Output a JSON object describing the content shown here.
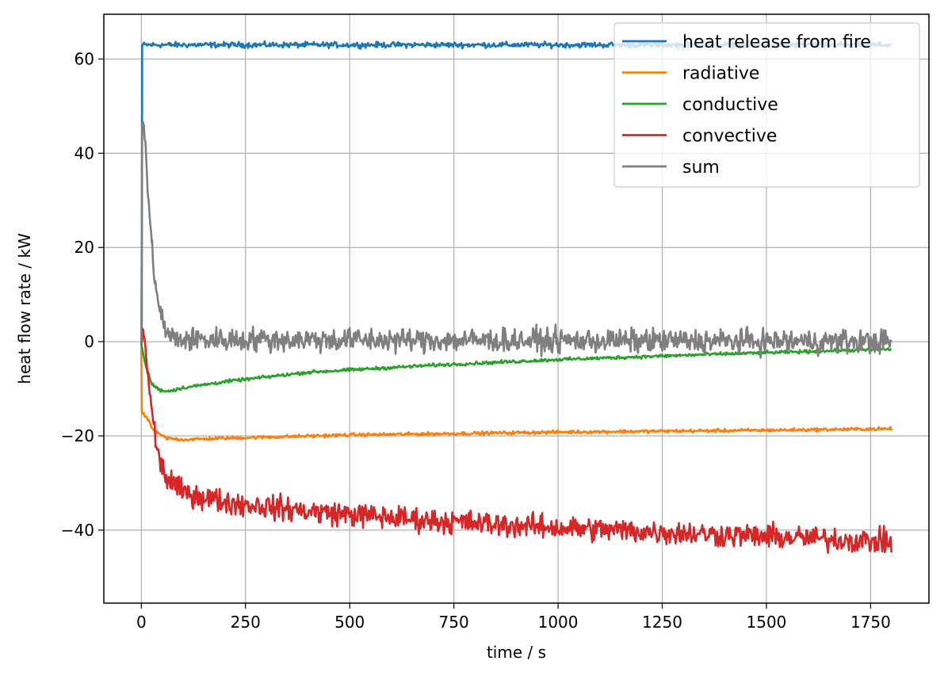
{
  "chart_data": {
    "type": "line",
    "xlabel": "time / s",
    "ylabel": "heat flow rate / kW",
    "xlim": [
      -90,
      1890
    ],
    "ylim": [
      -55.5,
      69.5
    ],
    "xticks": [
      0,
      250,
      500,
      750,
      1000,
      1250,
      1500,
      1750
    ],
    "yticks": [
      -40,
      -20,
      0,
      20,
      40,
      60
    ],
    "grid": true,
    "legend_position": "top-right",
    "series": [
      {
        "name": "heat release from fire",
        "color": "#1f77b4",
        "noise": 0.5,
        "points": [
          [
            0,
            0
          ],
          [
            1,
            0
          ],
          [
            2,
            63
          ],
          [
            1800,
            63
          ]
        ]
      },
      {
        "name": "radiative",
        "color": "#ff7f0e",
        "noise": 0.3,
        "points": [
          [
            0,
            0
          ],
          [
            1,
            -15
          ],
          [
            15,
            -16.5
          ],
          [
            30,
            -19
          ],
          [
            60,
            -20.5
          ],
          [
            100,
            -20.8
          ],
          [
            200,
            -20.5
          ],
          [
            500,
            -19.8
          ],
          [
            1000,
            -19.2
          ],
          [
            1500,
            -18.8
          ],
          [
            1800,
            -18.5
          ]
        ]
      },
      {
        "name": "conductive",
        "color": "#2ca02c",
        "noise": 0.3,
        "points": [
          [
            0,
            0
          ],
          [
            1,
            -1
          ],
          [
            10,
            -5
          ],
          [
            25,
            -9
          ],
          [
            45,
            -10.3
          ],
          [
            65,
            -10.5
          ],
          [
            100,
            -9.8
          ],
          [
            200,
            -8.5
          ],
          [
            400,
            -6.5
          ],
          [
            700,
            -5
          ],
          [
            1000,
            -3.8
          ],
          [
            1400,
            -2.6
          ],
          [
            1800,
            -1.6
          ]
        ]
      },
      {
        "name": "convective",
        "color": "#d62728",
        "noise": 2.2,
        "points": [
          [
            0,
            0
          ],
          [
            8,
            0.5
          ],
          [
            15,
            -6
          ],
          [
            25,
            -15
          ],
          [
            40,
            -24
          ],
          [
            60,
            -29
          ],
          [
            100,
            -32
          ],
          [
            200,
            -34
          ],
          [
            400,
            -36
          ],
          [
            700,
            -38
          ],
          [
            1000,
            -39.5
          ],
          [
            1400,
            -41
          ],
          [
            1800,
            -42.5
          ]
        ]
      },
      {
        "name": "sum",
        "color": "#7f7f7f",
        "noise": 2.2,
        "points": [
          [
            0,
            0
          ],
          [
            2,
            46
          ],
          [
            8,
            44
          ],
          [
            15,
            33
          ],
          [
            25,
            20
          ],
          [
            35,
            12
          ],
          [
            45,
            6
          ],
          [
            60,
            2
          ],
          [
            80,
            0.5
          ],
          [
            1800,
            0
          ]
        ]
      }
    ]
  }
}
